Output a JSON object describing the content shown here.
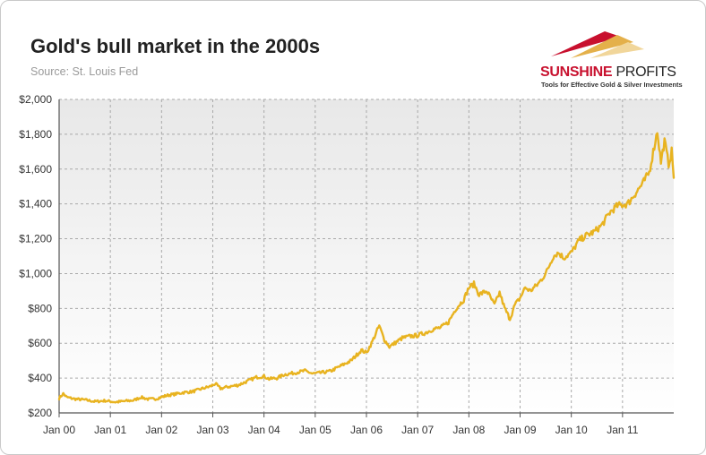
{
  "header": {
    "title": "Gold's bull market in the 2000s",
    "source": "Source: St. Louis Fed"
  },
  "logo": {
    "brand_part1": "SUNSHINE",
    "brand_part2": "PROFITS",
    "tagline": "Tools for Effective Gold & Silver Investments"
  },
  "colors": {
    "line": "#e8b320",
    "plot_bg_top": "#e8e8e8",
    "plot_bg_bottom": "#ffffff",
    "grid": "#a9a9a9",
    "axis": "#555555",
    "text": "#333333",
    "brand_red": "#c8102e"
  },
  "chart_data": {
    "type": "line",
    "title": "Gold's bull market in the 2000s",
    "subtitle": "Source: St. Louis Fed",
    "xlabel": "",
    "ylabel": "",
    "xlim": [
      0,
      12
    ],
    "ylim": [
      200,
      2000
    ],
    "y_ticks": [
      200,
      400,
      600,
      800,
      1000,
      1200,
      1400,
      1600,
      1800,
      2000
    ],
    "y_tick_labels": [
      "$200",
      "$400",
      "$600",
      "$800",
      "$1,000",
      "$1,200",
      "$1,400",
      "$1,600",
      "$1,800",
      "$2,000"
    ],
    "x_ticks": [
      0,
      1,
      2,
      3,
      4,
      5,
      6,
      7,
      8,
      9,
      10,
      11
    ],
    "x_tick_labels": [
      "Jan 00",
      "Jan 01",
      "Jan 02",
      "Jan 03",
      "Jan 04",
      "Jan 05",
      "Jan 06",
      "Jan 07",
      "Jan 08",
      "Jan 09",
      "Jan 10",
      "Jan 11"
    ],
    "grid": true,
    "series": [
      {
        "name": "Gold price",
        "x": [
          0,
          0.08,
          0.15,
          0.3,
          0.5,
          0.7,
          0.9,
          1.1,
          1.3,
          1.45,
          1.6,
          1.75,
          1.9,
          2.1,
          2.3,
          2.45,
          2.6,
          2.8,
          2.95,
          3.05,
          3.15,
          3.3,
          3.5,
          3.7,
          3.85,
          4.0,
          4.1,
          4.25,
          4.4,
          4.6,
          4.8,
          4.95,
          5.1,
          5.3,
          5.5,
          5.7,
          5.9,
          6.0,
          6.1,
          6.25,
          6.35,
          6.45,
          6.55,
          6.7,
          6.85,
          7.0,
          7.15,
          7.3,
          7.45,
          7.6,
          7.75,
          7.9,
          8.0,
          8.1,
          8.2,
          8.35,
          8.5,
          8.6,
          8.7,
          8.8,
          8.9,
          9.0,
          9.1,
          9.2,
          9.35,
          9.5,
          9.65,
          9.75,
          9.85,
          10.0,
          10.15,
          10.3,
          10.45,
          10.6,
          10.75,
          10.9,
          11.1,
          11.25,
          11.4,
          11.52,
          11.6,
          11.68,
          11.75,
          11.82,
          11.9,
          11.96,
          12.0
        ],
        "y": [
          285,
          310,
          290,
          280,
          275,
          265,
          270,
          262,
          268,
          272,
          290,
          278,
          282,
          300,
          310,
          318,
          322,
          340,
          352,
          368,
          340,
          350,
          360,
          385,
          405,
          410,
          395,
          400,
          420,
          430,
          442,
          425,
          430,
          440,
          470,
          500,
          560,
          545,
          600,
          700,
          620,
          580,
          600,
          630,
          640,
          645,
          660,
          680,
          690,
          720,
          800,
          850,
          920,
          940,
          880,
          900,
          820,
          890,
          800,
          740,
          820,
          860,
          920,
          900,
          940,
          1000,
          1100,
          1120,
          1090,
          1120,
          1190,
          1220,
          1240,
          1280,
          1350,
          1390,
          1400,
          1460,
          1520,
          1580,
          1700,
          1820,
          1640,
          1760,
          1630,
          1700,
          1550
        ]
      }
    ]
  }
}
